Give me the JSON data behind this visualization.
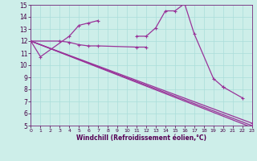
{
  "background_color": "#cdeee9",
  "grid_color": "#aaddda",
  "line_color": "#993399",
  "xlim": [
    0,
    23
  ],
  "ylim": [
    5,
    15
  ],
  "xlabel": "Windchill (Refroidissement éolien,°C)",
  "xtick_vals": [
    0,
    1,
    2,
    3,
    4,
    5,
    6,
    7,
    8,
    9,
    10,
    11,
    12,
    13,
    14,
    15,
    16,
    17,
    18,
    19,
    20,
    21,
    22,
    23
  ],
  "ytick_vals": [
    5,
    6,
    7,
    8,
    9,
    10,
    11,
    12,
    13,
    14,
    15
  ],
  "curve1_segs": [
    {
      "x": [
        0,
        1,
        4,
        5,
        6,
        7
      ],
      "y": [
        12.0,
        10.7,
        12.4,
        13.3,
        13.5,
        13.7
      ]
    },
    {
      "x": [
        11,
        12,
        13,
        14,
        15,
        16
      ],
      "y": [
        12.4,
        12.4,
        13.1,
        14.5,
        14.5,
        15.1
      ]
    },
    {
      "x": [
        16,
        17,
        19,
        20
      ],
      "y": [
        15.1,
        12.6,
        8.9,
        8.2
      ]
    },
    {
      "x": [
        20,
        22
      ],
      "y": [
        8.2,
        7.3
      ]
    }
  ],
  "curve2_segs": [
    {
      "x": [
        0,
        3,
        4,
        5,
        6,
        7,
        11,
        12
      ],
      "y": [
        12.0,
        12.0,
        11.9,
        11.7,
        11.6,
        11.6,
        11.5,
        11.5
      ]
    }
  ],
  "straight_lines": [
    {
      "x": [
        0,
        23
      ],
      "y": [
        12.0,
        5.2
      ]
    },
    {
      "x": [
        0,
        23
      ],
      "y": [
        12.0,
        5.0
      ]
    },
    {
      "x": [
        0,
        23
      ],
      "y": [
        12.0,
        4.85
      ]
    }
  ]
}
